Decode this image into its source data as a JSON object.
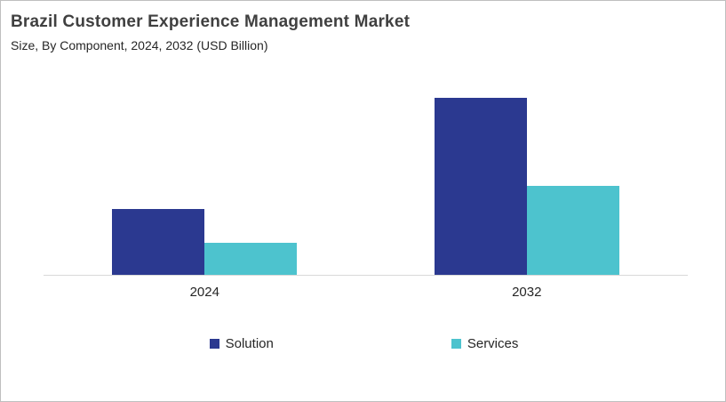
{
  "header": {
    "title": "Brazil Customer Experience Management Market",
    "subtitle": "Size, By Component, 2024, 2032 (USD Billion)"
  },
  "chart_data": {
    "type": "bar",
    "title": "Brazil Customer Experience Management Market",
    "subtitle": "Size, By Component, 2024, 2032 (USD Billion)",
    "units_label": "USD Billion",
    "categories": [
      "2024",
      "2032"
    ],
    "series": [
      {
        "name": "Solution",
        "color": "#2B3990",
        "values": [
          0.37,
          1.0
        ]
      },
      {
        "name": "Services",
        "color": "#4DC3CE",
        "values": [
          0.18,
          0.5
        ]
      }
    ],
    "value_scale": "relative (no numeric value axis shown; values normalized to tallest bar = 1.0)",
    "xlabel": "",
    "ylabel": "",
    "ylim": [
      0,
      1.1
    ],
    "gridlines": false,
    "value_axis_visible": false,
    "legend_position": "bottom",
    "axis_line_color": "#D9D9D9"
  },
  "legend": {
    "items": [
      {
        "label": "Solution",
        "color": "#2B3990"
      },
      {
        "label": "Services",
        "color": "#4DC3CE"
      }
    ]
  }
}
